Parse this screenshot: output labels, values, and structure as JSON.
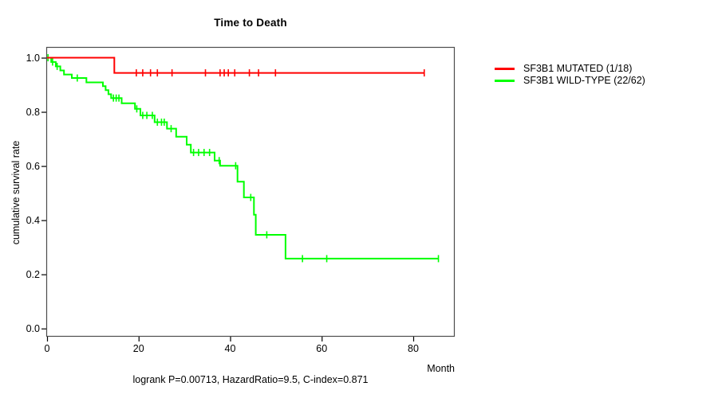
{
  "title": "Time to Death",
  "chart_data": {
    "type": "line",
    "subtype": "kaplan-meier-step",
    "title": "Time to Death",
    "xlabel": "Month",
    "ylabel": "cumulative survival rate",
    "xlim": [
      0,
      89
    ],
    "ylim": [
      0.0,
      1.0
    ],
    "x_ticks": [
      {
        "value": 0,
        "label": "0"
      },
      {
        "value": 20,
        "label": "20"
      },
      {
        "value": 40,
        "label": "40"
      },
      {
        "value": 60,
        "label": "60"
      },
      {
        "value": 80,
        "label": "80"
      }
    ],
    "y_ticks": [
      {
        "value": 1.0,
        "label": "1.0"
      },
      {
        "value": 0.8,
        "label": "0.8"
      },
      {
        "value": 0.6,
        "label": "0.6"
      },
      {
        "value": 0.4,
        "label": "0.4"
      },
      {
        "value": 0.2,
        "label": "0.2"
      },
      {
        "value": 0.0,
        "label": "0.0"
      }
    ],
    "grid": false,
    "legend_position": "right-outside",
    "annotation": "logrank P=0.00713, HazardRatio=9.5, C-index=0.871",
    "series": [
      {
        "name": "SF3B1 MUTATED (1/18)",
        "color": "#ff0000",
        "events": "1/18",
        "steps": [
          [
            0,
            1.0
          ],
          [
            14.7,
            0.944
          ]
        ],
        "end_x": 82.4,
        "censor_marks": [
          [
            19.5,
            0.944
          ],
          [
            20.9,
            0.944
          ],
          [
            22.6,
            0.944
          ],
          [
            24.1,
            0.944
          ],
          [
            27.3,
            0.944
          ],
          [
            34.6,
            0.944
          ],
          [
            37.8,
            0.944
          ],
          [
            38.7,
            0.944
          ],
          [
            39.6,
            0.944
          ],
          [
            41.0,
            0.944
          ],
          [
            44.2,
            0.944
          ],
          [
            46.2,
            0.944
          ],
          [
            49.9,
            0.944
          ],
          [
            82.4,
            0.944
          ]
        ]
      },
      {
        "name": "SF3B1 WILD-TYPE (22/62)",
        "color": "#00ff00",
        "events": "22/62",
        "steps": [
          [
            0,
            1.0
          ],
          [
            0.9,
            0.984
          ],
          [
            1.9,
            0.968
          ],
          [
            2.9,
            0.953
          ],
          [
            3.7,
            0.938
          ],
          [
            5.4,
            0.925
          ],
          [
            8.6,
            0.909
          ],
          [
            12.2,
            0.895
          ],
          [
            12.8,
            0.88
          ],
          [
            13.4,
            0.865
          ],
          [
            14.0,
            0.851
          ],
          [
            16.3,
            0.832
          ],
          [
            19.2,
            0.811
          ],
          [
            20.4,
            0.787
          ],
          [
            23.5,
            0.762
          ],
          [
            26.2,
            0.738
          ],
          [
            28.2,
            0.708
          ],
          [
            30.5,
            0.679
          ],
          [
            31.4,
            0.65
          ],
          [
            36.6,
            0.62
          ],
          [
            37.8,
            0.601
          ],
          [
            41.6,
            0.542
          ],
          [
            43.0,
            0.484
          ],
          [
            45.2,
            0.42
          ],
          [
            45.6,
            0.346
          ],
          [
            52.1,
            0.258
          ]
        ],
        "end_x": 85.5,
        "censor_marks": [
          [
            0.2,
            1.0
          ],
          [
            1.2,
            0.984
          ],
          [
            2.2,
            0.968
          ],
          [
            6.6,
            0.925
          ],
          [
            14.5,
            0.851
          ],
          [
            15.1,
            0.851
          ],
          [
            15.7,
            0.851
          ],
          [
            19.6,
            0.811
          ],
          [
            20.9,
            0.787
          ],
          [
            21.8,
            0.787
          ],
          [
            23.0,
            0.787
          ],
          [
            24.1,
            0.762
          ],
          [
            25.0,
            0.762
          ],
          [
            25.6,
            0.762
          ],
          [
            27.1,
            0.738
          ],
          [
            32.0,
            0.65
          ],
          [
            33.1,
            0.65
          ],
          [
            34.3,
            0.65
          ],
          [
            35.5,
            0.65
          ],
          [
            37.6,
            0.62
          ],
          [
            41.2,
            0.601
          ],
          [
            44.5,
            0.484
          ],
          [
            48.0,
            0.346
          ],
          [
            55.8,
            0.258
          ],
          [
            61.1,
            0.258
          ],
          [
            85.5,
            0.258
          ]
        ]
      }
    ],
    "colors": {
      "box": "#4d4d4d",
      "ticks": "#000000",
      "text": "#000000"
    }
  }
}
